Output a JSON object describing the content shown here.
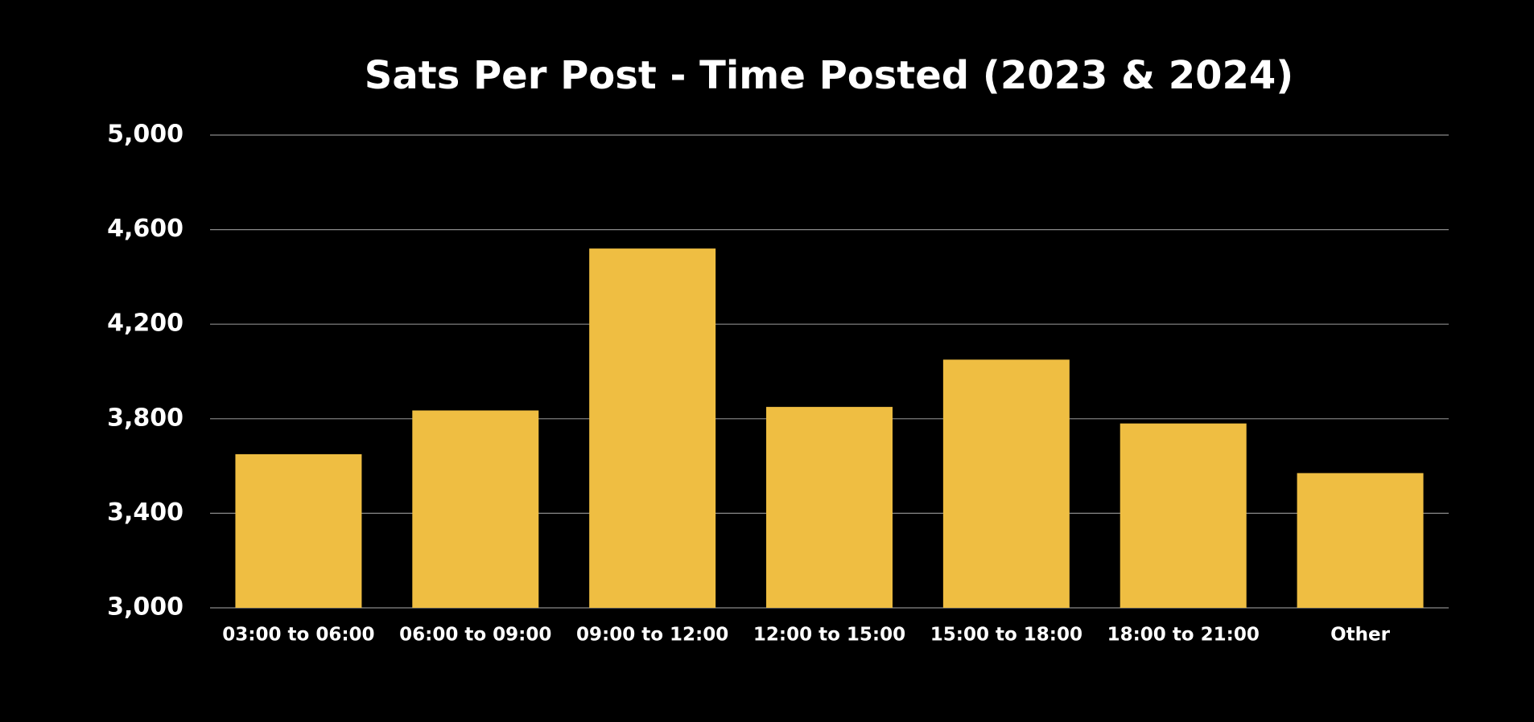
{
  "chart_data": {
    "type": "bar",
    "title": "Sats Per Post - Time Posted (2023 & 2024)",
    "categories": [
      "03:00 to 06:00",
      "06:00 to 09:00",
      "09:00 to 12:00",
      "12:00 to 15:00",
      "15:00 to 18:00",
      "18:00 to 21:00",
      "Other"
    ],
    "values": [
      3650,
      3835,
      4520,
      3850,
      4050,
      3780,
      3570
    ],
    "color": "#efbe42",
    "ylim": [
      3000,
      5000
    ],
    "yticks": [
      {
        "value": 3000,
        "label": "3,000"
      },
      {
        "value": 3400,
        "label": "3,400"
      },
      {
        "value": 3800,
        "label": "3,800"
      },
      {
        "value": 4200,
        "label": "4,200"
      },
      {
        "value": 4600,
        "label": "4,600"
      },
      {
        "value": 5000,
        "label": "5,000"
      }
    ],
    "grid": true
  }
}
